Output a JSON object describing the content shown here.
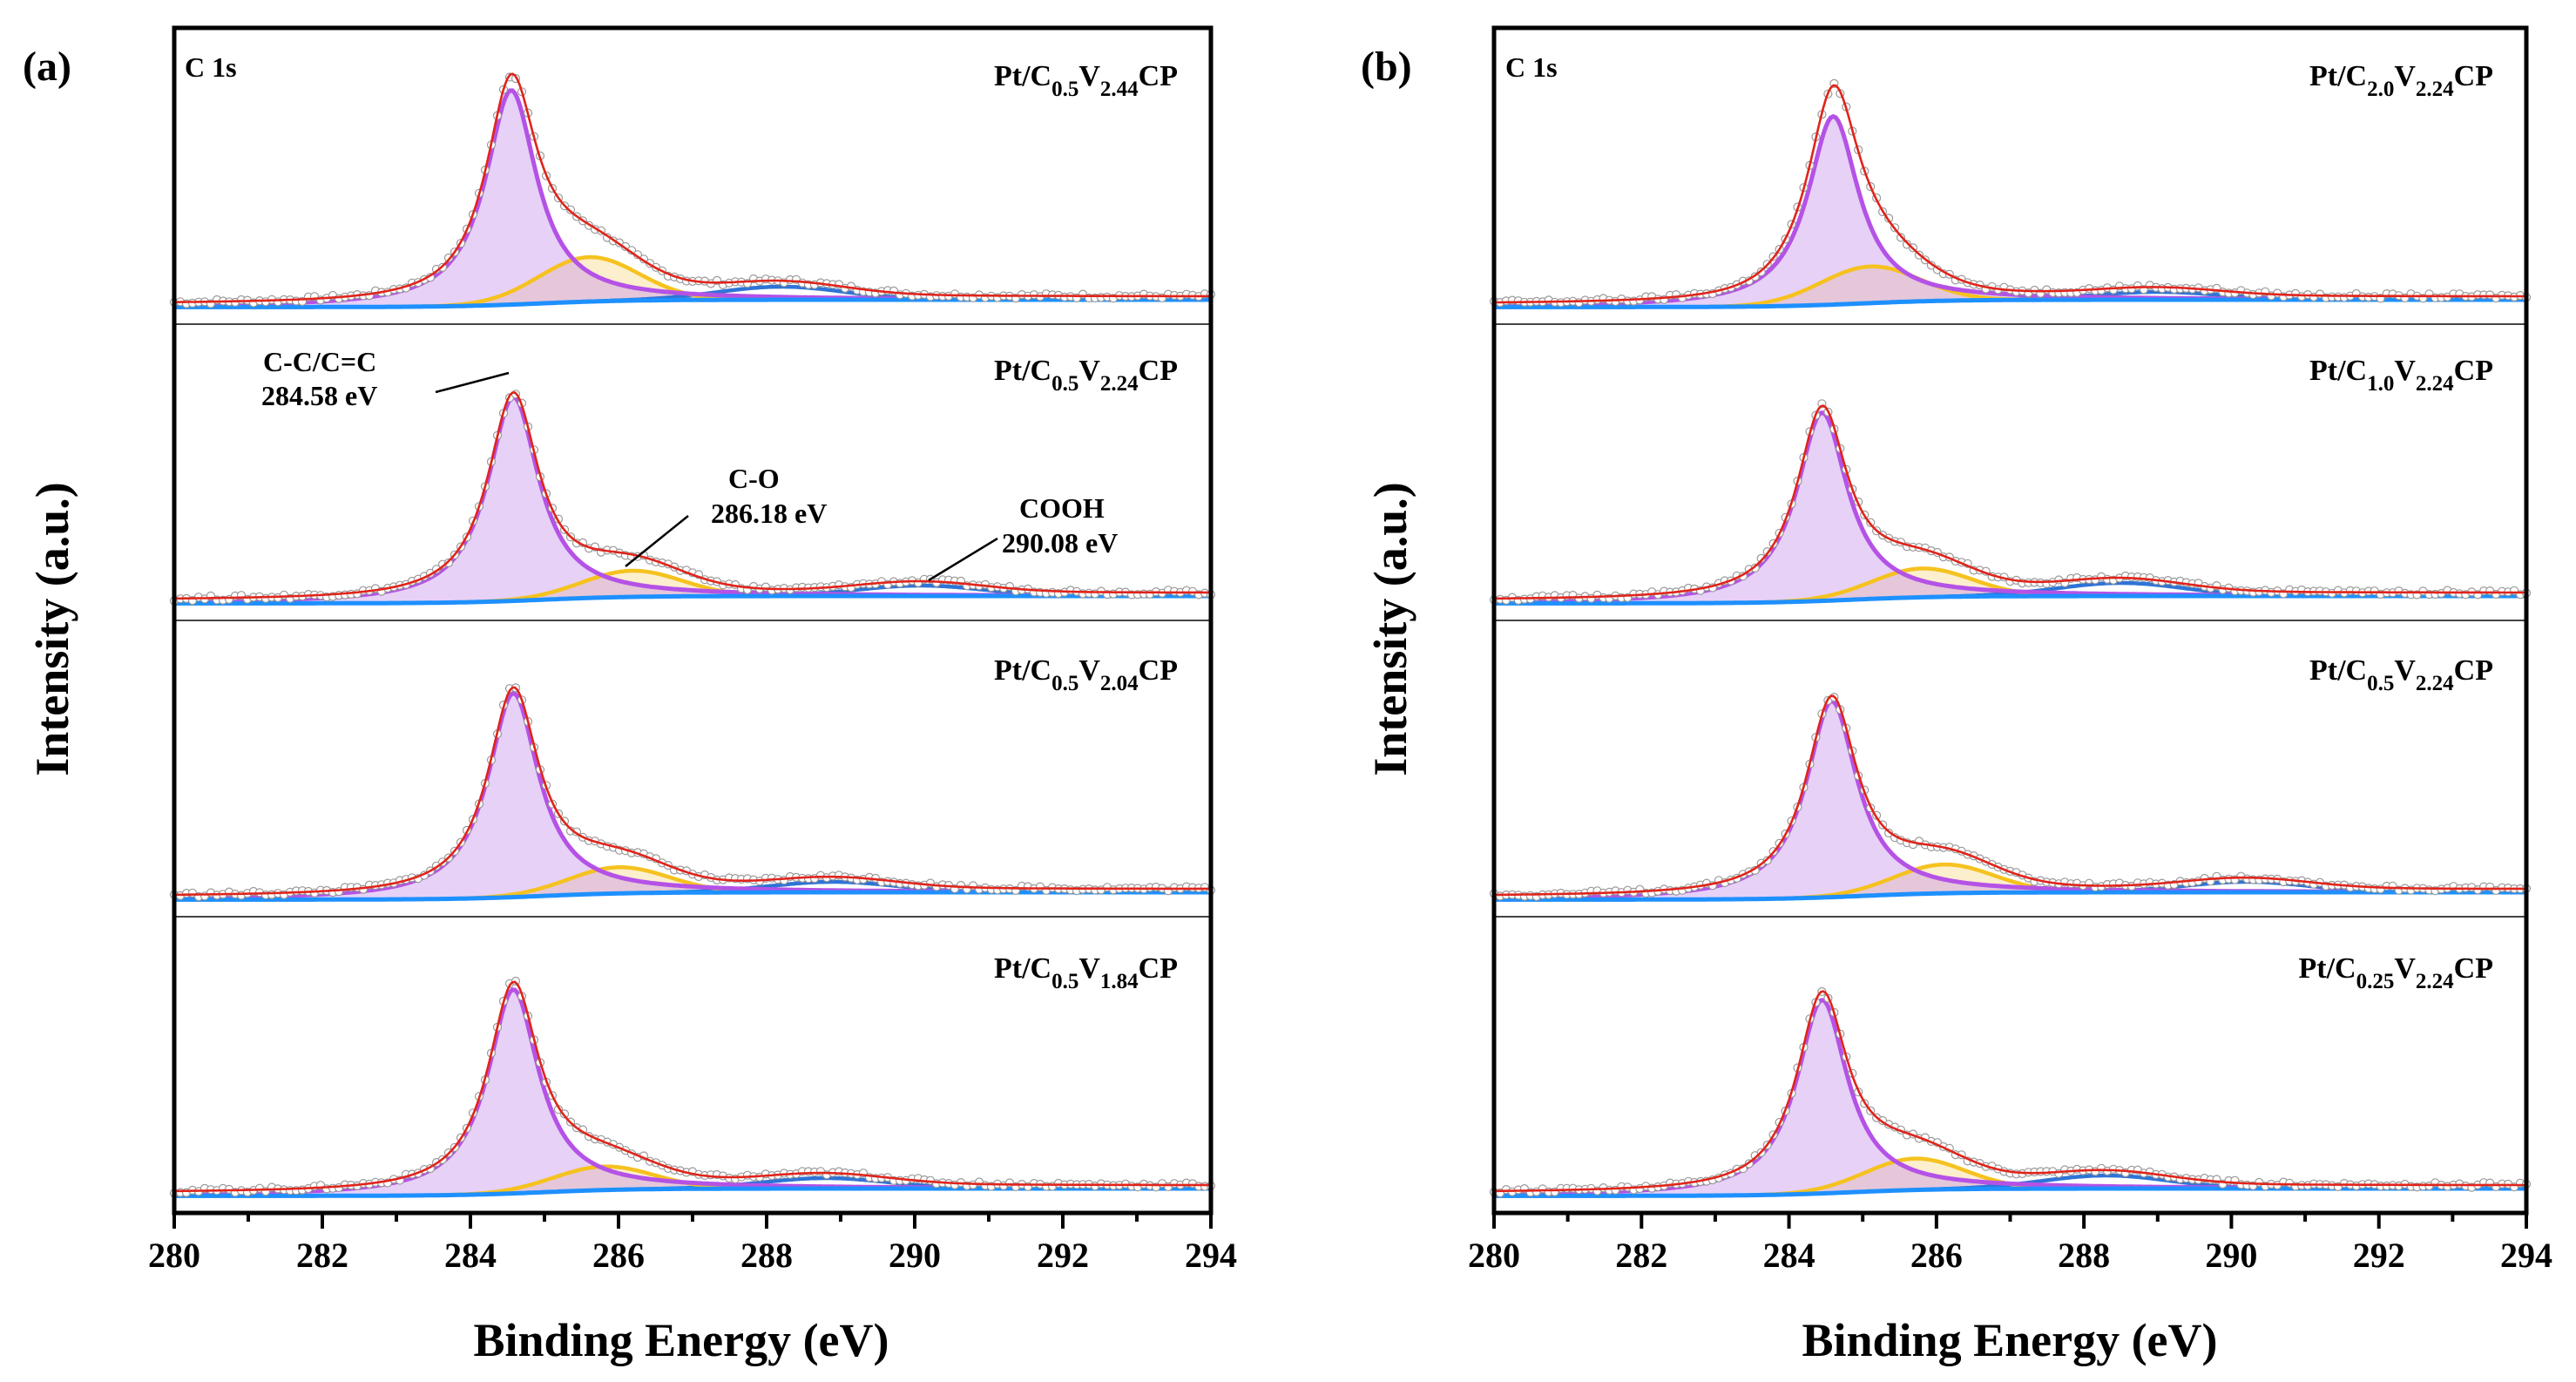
{
  "chart_data": [
    {
      "panel": "(a)",
      "type": "line",
      "title": "C 1s",
      "xlabel": "Binding Energy (eV)",
      "ylabel": "Intensity (a.u.)",
      "xlim": [
        280,
        294
      ],
      "xticks": [
        "280",
        "282",
        "284",
        "286",
        "288",
        "290",
        "292",
        "294"
      ],
      "components": [
        "C-C/C=C",
        "C-O",
        "COOH",
        "background",
        "envelope",
        "raw data"
      ],
      "annotations": [
        {
          "line1": "C-C/C=C",
          "line2": "284.58 eV",
          "position": 284.58
        },
        {
          "line1": "C-O",
          "line2": "286.18 eV",
          "position": 286.18
        },
        {
          "line1": "COOH",
          "line2": "290.08 eV",
          "position": 290.08
        }
      ],
      "series": [
        {
          "name": "Pt/C0.5V2.44CP",
          "label_parts": [
            "Pt/C",
            "0.5",
            "V",
            "2.44",
            "CP"
          ],
          "cc_center": 284.55,
          "cc_height": 0.82,
          "co_center": 285.6,
          "co_height": 0.17,
          "cooh_center": 288.2,
          "cooh_height": 0.05
        },
        {
          "name": "Pt/C0.5V2.24CP",
          "label_parts": [
            "Pt/C",
            "0.5",
            "V",
            "2.24",
            "CP"
          ],
          "cc_center": 284.58,
          "cc_height": 0.78,
          "co_center": 286.18,
          "co_height": 0.1,
          "cooh_center": 290.08,
          "cooh_height": 0.04
        },
        {
          "name": "Pt/C0.5V2.04CP",
          "label_parts": [
            "Pt/C",
            "0.5",
            "V",
            "2.04",
            "CP"
          ],
          "cc_center": 284.58,
          "cc_height": 0.78,
          "co_center": 286.0,
          "co_height": 0.1,
          "cooh_center": 288.9,
          "cooh_height": 0.04
        },
        {
          "name": "Pt/C0.5V1.84CP",
          "label_parts": [
            "Pt/C",
            "0.5",
            "V",
            "1.84",
            "CP"
          ],
          "cc_center": 284.58,
          "cc_height": 0.78,
          "co_center": 285.8,
          "co_height": 0.09,
          "cooh_center": 288.8,
          "cooh_height": 0.04
        }
      ]
    },
    {
      "panel": "(b)",
      "type": "line",
      "title": "C 1s",
      "xlabel": "Binding Energy (eV)",
      "ylabel": "Intensity (a.u.)",
      "xlim": [
        280,
        294
      ],
      "xticks": [
        "280",
        "282",
        "284",
        "286",
        "288",
        "290",
        "292",
        "294"
      ],
      "components": [
        "C-C/C=C",
        "C-O",
        "COOH",
        "background",
        "envelope",
        "raw data"
      ],
      "series": [
        {
          "name": "Pt/C2.0V2.24CP",
          "label_parts": [
            "Pt/C",
            "2.0",
            "V",
            "2.24",
            "CP"
          ],
          "cc_center": 284.6,
          "cc_height": 0.72,
          "co_center": 285.1,
          "co_height": 0.14,
          "cooh_center": 289.0,
          "cooh_height": 0.03
        },
        {
          "name": "Pt/C1.0V2.24CP",
          "label_parts": [
            "Pt/C",
            "1.0",
            "V",
            "2.24",
            "CP"
          ],
          "cc_center": 284.45,
          "cc_height": 0.72,
          "co_center": 285.8,
          "co_height": 0.11,
          "cooh_center": 288.5,
          "cooh_height": 0.05
        },
        {
          "name": "Pt/C0.5V2.24CP",
          "label_parts": [
            "Pt/C",
            "0.5",
            "V",
            "2.24",
            "CP"
          ],
          "cc_center": 284.58,
          "cc_height": 0.75,
          "co_center": 286.1,
          "co_height": 0.11,
          "cooh_center": 290.2,
          "cooh_height": 0.04
        },
        {
          "name": "Pt/C0.25V2.24CP",
          "label_parts": [
            "Pt/C",
            "0.25",
            "V",
            "2.24",
            "CP"
          ],
          "cc_center": 284.45,
          "cc_height": 0.74,
          "co_center": 285.7,
          "co_height": 0.12,
          "cooh_center": 288.3,
          "cooh_height": 0.05
        }
      ]
    }
  ]
}
